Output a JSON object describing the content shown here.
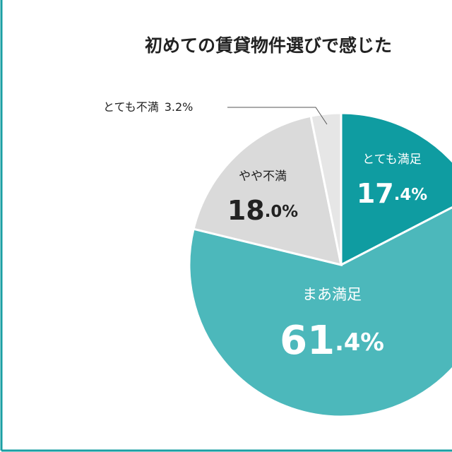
{
  "chart_data": {
    "type": "pie",
    "title": "初めての賃貸物件選びで感じた",
    "categories": [
      "とても満足",
      "まあ満足",
      "やや不満",
      "とても不満"
    ],
    "values": [
      17.4,
      61.4,
      18.0,
      3.2
    ],
    "value_labels": [
      "17.4%",
      "61.4%",
      "18.0%",
      "3.2%"
    ],
    "colors": [
      "#0f9ca1",
      "#4cb8bb",
      "#dadada",
      "#e6e6e6"
    ]
  }
}
